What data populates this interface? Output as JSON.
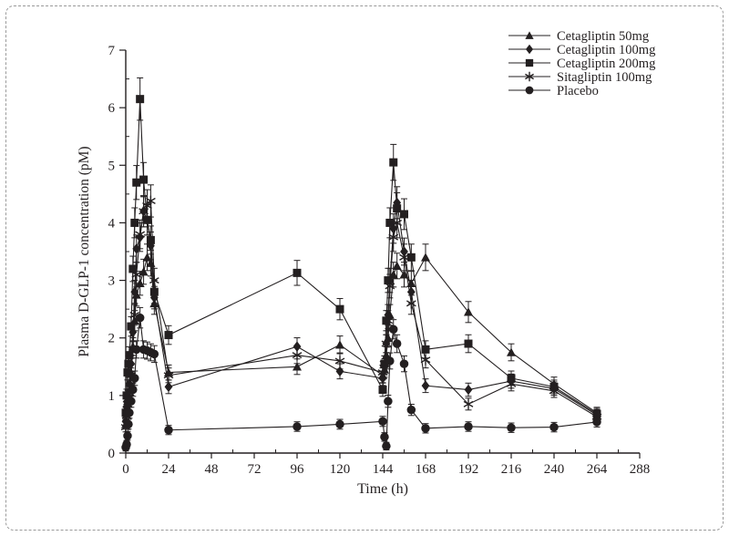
{
  "figure": {
    "background": "#ffffff",
    "border_color": "#9a9a9a",
    "ink_color": "#231f20"
  },
  "chart_data": {
    "type": "line",
    "title": "",
    "xlabel": "Time (h)",
    "ylabel": "Plasma D-GLP-1 concentration (pM)",
    "xlim": [
      0,
      288
    ],
    "ylim": [
      0,
      7
    ],
    "x_ticks": [
      0,
      24,
      48,
      72,
      96,
      120,
      144,
      168,
      192,
      216,
      240,
      264,
      288
    ],
    "x_minor_step": 12,
    "y_ticks": [
      0,
      1,
      2,
      3,
      4,
      5,
      6,
      7
    ],
    "y_minor_step": 0.5,
    "grid": false,
    "legend_position": "top-right-inside",
    "error_bar_rule": {
      "base": 0.06,
      "fraction": 0.05
    },
    "x": [
      0,
      0.5,
      1,
      1.5,
      2,
      3,
      4,
      5,
      6,
      8,
      10,
      12,
      14,
      16,
      24,
      96,
      120,
      144,
      145,
      146,
      147,
      148,
      150,
      152,
      156,
      160,
      168,
      192,
      216,
      240,
      264
    ],
    "series": [
      {
        "name": "Cetagliptin 50mg",
        "marker": "triangle",
        "values": [
          0.5,
          0.72,
          0.9,
          1.0,
          1.1,
          1.4,
          1.85,
          2.3,
          2.75,
          2.95,
          3.15,
          3.4,
          3.3,
          2.6,
          1.4,
          1.5,
          1.88,
          1.35,
          1.45,
          1.7,
          2.0,
          2.4,
          3.1,
          3.25,
          3.1,
          2.95,
          3.4,
          2.45,
          1.75,
          1.2,
          0.7
        ]
      },
      {
        "name": "Cetagliptin 100mg",
        "marker": "diamond",
        "values": [
          0.55,
          0.8,
          0.95,
          1.05,
          1.2,
          1.55,
          2.1,
          2.8,
          3.55,
          3.75,
          4.2,
          4.05,
          3.6,
          2.7,
          1.15,
          1.85,
          1.42,
          1.3,
          1.5,
          1.9,
          2.4,
          3.0,
          3.9,
          4.35,
          3.5,
          2.8,
          1.17,
          1.1,
          1.25,
          1.12,
          0.66
        ]
      },
      {
        "name": "Cetagliptin 200mg",
        "marker": "square",
        "values": [
          0.7,
          1.0,
          1.4,
          1.55,
          1.7,
          2.2,
          3.2,
          4.0,
          4.7,
          6.15,
          4.75,
          4.05,
          3.7,
          2.8,
          2.05,
          3.13,
          2.5,
          1.1,
          1.55,
          2.3,
          3.0,
          4.0,
          5.05,
          4.25,
          4.15,
          3.4,
          1.8,
          1.9,
          1.3,
          1.15,
          0.68
        ]
      },
      {
        "name": "Sitagliptin 100mg",
        "marker": "asterisk",
        "values": [
          0.45,
          0.65,
          0.85,
          0.95,
          1.05,
          1.35,
          1.8,
          2.4,
          3.1,
          3.8,
          4.2,
          4.3,
          4.38,
          3.0,
          1.35,
          1.7,
          1.6,
          1.4,
          1.55,
          1.9,
          2.3,
          2.9,
          3.75,
          4.0,
          3.4,
          2.6,
          1.62,
          0.85,
          1.2,
          1.08,
          0.63
        ]
      },
      {
        "name": "Placebo",
        "marker": "circle",
        "values": [
          0.1,
          0.15,
          0.3,
          0.5,
          0.7,
          0.9,
          1.1,
          1.3,
          1.8,
          2.35,
          1.8,
          1.78,
          1.75,
          1.72,
          0.4,
          0.46,
          0.5,
          0.55,
          0.28,
          0.12,
          0.9,
          1.6,
          2.15,
          1.9,
          1.55,
          0.75,
          0.43,
          0.46,
          0.44,
          0.45,
          0.54
        ]
      }
    ]
  }
}
